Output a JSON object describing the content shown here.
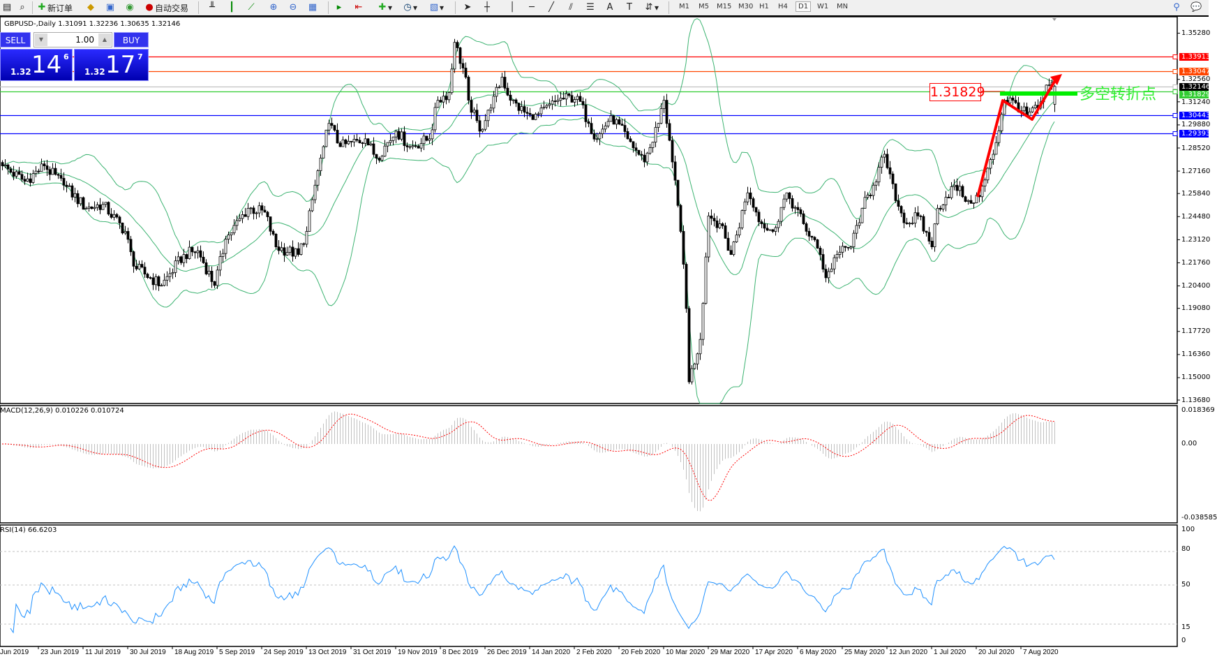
{
  "toolbar": {
    "new_order_label": "新订单",
    "auto_trading_label": "自动交易",
    "timeframes": [
      "M1",
      "M5",
      "M15",
      "M30",
      "H1",
      "H4",
      "D1",
      "W1",
      "MN"
    ],
    "active_timeframe": "D1"
  },
  "chart": {
    "info": "GBPUSD-,Daily  1.31091 1.32236 1.30635 1.32146",
    "symbol": "GBPUSD-",
    "period": "Daily"
  },
  "trade_panel": {
    "sell_label": "SELL",
    "buy_label": "BUY",
    "lot": "1.00",
    "sell_price": {
      "small": "1.32",
      "big": "14",
      "pip": "6"
    },
    "buy_price": {
      "small": "1.32",
      "big": "17",
      "pip": "7"
    }
  },
  "price_axis": [
    "1.35280",
    "1.32560",
    "1.31240",
    "1.29880",
    "1.28520",
    "1.27160",
    "1.25840",
    "1.24480",
    "1.23120",
    "1.21760",
    "1.20400",
    "1.19080",
    "1.17720",
    "1.16360",
    "1.15000",
    "1.13680"
  ],
  "horizontal_lines": [
    {
      "price": "1.33913",
      "color": "#ff0000"
    },
    {
      "price": "1.33047",
      "color": "#ff4500"
    },
    {
      "price": "1.32146",
      "color": "#c0c0c0",
      "label_bg": "#000000"
    },
    {
      "price": "1.31829",
      "color": "#32cd32"
    },
    {
      "price": "1.30443",
      "color": "#0000ff"
    },
    {
      "price": "1.29393",
      "color": "#0000ff"
    }
  ],
  "annotations": {
    "price_label": "1.31829",
    "turning_point_text": "多空转折点"
  },
  "macd": {
    "label": "MACD(12,26,9) 0.010226 0.010724",
    "axis": [
      "0.018369",
      "0.00",
      "-0.038585"
    ]
  },
  "rsi": {
    "label": "RSI(14) 66.6203",
    "axis": [
      "100",
      "80",
      "50",
      "15",
      "0"
    ]
  },
  "date_axis": [
    "Jun 2019",
    "23 Jun 2019",
    "11 Jul 2019",
    "30 Jul 2019",
    "18 Aug 2019",
    "5 Sep 2019",
    "24 Sep 2019",
    "13 Oct 2019",
    "31 Oct 2019",
    "19 Nov 2019",
    "8 Dec 2019",
    "26 Dec 2019",
    "14 Jan 2020",
    "2 Feb 2020",
    "20 Feb 2020",
    "10 Mar 2020",
    "29 Mar 2020",
    "17 Apr 2020",
    "6 May 2020",
    "25 May 2020",
    "12 Jun 2020",
    "1 Jul 2020",
    "20 Jul 2020",
    "7 Aug 2020"
  ],
  "chart_data": {
    "type": "candlestick",
    "close_waypoints": [
      [
        0,
        1.2747
      ],
      [
        8,
        1.2656
      ],
      [
        15,
        1.2747
      ],
      [
        22,
        1.2633
      ],
      [
        30,
        1.2497
      ],
      [
        36,
        1.252
      ],
      [
        44,
        1.2361
      ],
      [
        47,
        1.2156
      ],
      [
        57,
        1.2043
      ],
      [
        65,
        1.2225
      ],
      [
        70,
        1.2247
      ],
      [
        76,
        1.2043
      ],
      [
        80,
        1.2315
      ],
      [
        88,
        1.2497
      ],
      [
        94,
        1.2474
      ],
      [
        98,
        1.227
      ],
      [
        106,
        1.2225
      ],
      [
        109,
        1.2361
      ],
      [
        112,
        1.2633
      ],
      [
        115,
        1.286
      ],
      [
        117,
        1.2997
      ],
      [
        121,
        1.286
      ],
      [
        130,
        1.2906
      ],
      [
        134,
        1.2792
      ],
      [
        141,
        1.2951
      ],
      [
        146,
        1.286
      ],
      [
        153,
        1.2906
      ],
      [
        156,
        1.3133
      ],
      [
        160,
        1.3178
      ],
      [
        162,
        1.3474
      ],
      [
        166,
        1.3269
      ],
      [
        167,
        1.3133
      ],
      [
        171,
        1.2951
      ],
      [
        175,
        1.3087
      ],
      [
        179,
        1.3269
      ],
      [
        182,
        1.3133
      ],
      [
        190,
        1.3019
      ],
      [
        199,
        1.3133
      ],
      [
        206,
        1.3156
      ],
      [
        210,
        1.2997
      ],
      [
        213,
        1.2906
      ],
      [
        218,
        1.3042
      ],
      [
        224,
        1.2906
      ],
      [
        230,
        1.277
      ],
      [
        235,
        1.2997
      ],
      [
        237,
        1.3133
      ],
      [
        240,
        1.277
      ],
      [
        243,
        1.2361
      ],
      [
        245,
        1.1907
      ],
      [
        246,
        1.1475
      ],
      [
        250,
        1.1725
      ],
      [
        253,
        1.2452
      ],
      [
        257,
        1.2406
      ],
      [
        261,
        1.2225
      ],
      [
        267,
        1.2588
      ],
      [
        272,
        1.2406
      ],
      [
        276,
        1.2361
      ],
      [
        281,
        1.2588
      ],
      [
        287,
        1.2406
      ],
      [
        293,
        1.2225
      ],
      [
        295,
        1.2088
      ],
      [
        299,
        1.2225
      ],
      [
        304,
        1.227
      ],
      [
        308,
        1.2497
      ],
      [
        312,
        1.2633
      ],
      [
        316,
        1.2815
      ],
      [
        320,
        1.2542
      ],
      [
        324,
        1.2406
      ],
      [
        328,
        1.2452
      ],
      [
        333,
        1.227
      ],
      [
        335,
        1.2497
      ],
      [
        341,
        1.2633
      ],
      [
        346,
        1.2543
      ],
      [
        350,
        1.2565
      ],
      [
        355,
        1.2815
      ],
      [
        359,
        1.3133
      ],
      [
        362,
        1.3133
      ],
      [
        367,
        1.3042
      ],
      [
        371,
        1.3087
      ],
      [
        375,
        1.3224
      ],
      [
        377,
        1.32146
      ]
    ],
    "last_bar": {
      "open": 1.31091,
      "high": 1.32236,
      "low": 1.30635,
      "close": 1.32146
    },
    "indicators": [
      "Bollinger Bands(20,2)",
      "MACD(12,26,9)",
      "RSI(14)"
    ],
    "price_range": [
      1.1368,
      1.3528
    ],
    "macd_range": [
      -0.038585,
      0.018369
    ],
    "rsi_levels": [
      80,
      50,
      15
    ],
    "band_color": "#3cb371",
    "signal_color": "#ff0000",
    "rsi_color": "#1e90ff"
  }
}
